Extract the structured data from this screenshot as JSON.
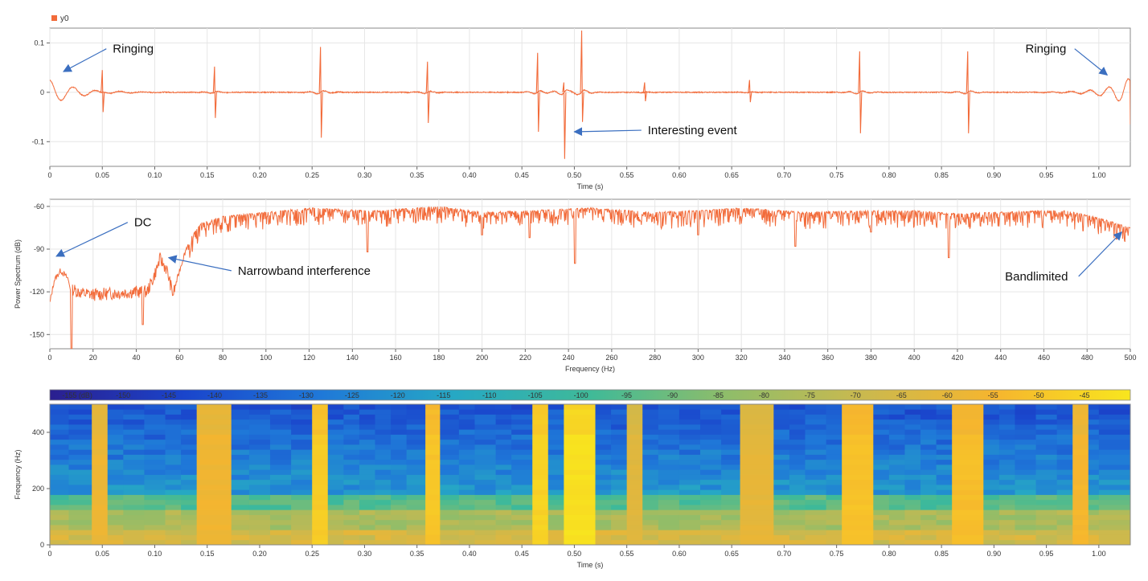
{
  "chart_data": [
    {
      "type": "line",
      "title": "",
      "xlabel": "Time (s)",
      "ylabel": "",
      "xlim": [
        0,
        1.03
      ],
      "ylim": [
        -0.15,
        0.13
      ],
      "grid": true,
      "legend": "top-left",
      "legend_entries": [
        "y0"
      ],
      "x_ticks": [
        0,
        0.05,
        0.1,
        0.15,
        0.2,
        0.25,
        0.3,
        0.35,
        0.4,
        0.45,
        0.5,
        0.55,
        0.6,
        0.65,
        0.7,
        0.75,
        0.8,
        0.85,
        0.9,
        0.95,
        1.0
      ],
      "x_tick_labels": [
        "0",
        "0.05",
        "0.10",
        "0.15",
        "0.20",
        "0.25",
        "0.30",
        "0.35",
        "0.40",
        "0.45",
        "0.50",
        "0.55",
        "0.60",
        "0.65",
        "0.70",
        "0.75",
        "0.80",
        "0.85",
        "0.90",
        "0.95",
        "1.00"
      ],
      "y_ticks": [
        0.1,
        0,
        -0.1
      ],
      "y_tick_labels": [
        "0.1",
        "0",
        "-0.1"
      ],
      "series": [
        {
          "name": "y0",
          "color": "#f26b3a",
          "baseline": 0,
          "ringing_ends": [
            {
              "x": 0.0,
              "amplitude": 0.025
            },
            {
              "x": 1.03,
              "amplitude": 0.03
            }
          ],
          "spikes": [
            {
              "x": 0.05,
              "up": 0.045,
              "down": -0.04
            },
            {
              "x": 0.157,
              "up": 0.052,
              "down": -0.052
            },
            {
              "x": 0.258,
              "up": 0.092,
              "down": -0.092
            },
            {
              "x": 0.36,
              "up": 0.062,
              "down": -0.062
            },
            {
              "x": 0.465,
              "up": 0.08,
              "down": -0.08
            },
            {
              "x": 0.49,
              "up": 0.02,
              "down": -0.135
            },
            {
              "x": 0.507,
              "up": 0.125,
              "down": -0.06
            },
            {
              "x": 0.567,
              "up": 0.02,
              "down": -0.018
            },
            {
              "x": 0.667,
              "up": 0.025,
              "down": -0.02
            },
            {
              "x": 0.772,
              "up": 0.083,
              "down": -0.083
            },
            {
              "x": 0.875,
              "up": 0.083,
              "down": -0.083
            }
          ]
        }
      ],
      "annotations": [
        {
          "text": "Ringing",
          "x": 0.06,
          "y": 0.08,
          "arrow_to": [
            0.013,
            0.042
          ]
        },
        {
          "text": "Interesting event",
          "x": 0.57,
          "y": -0.085,
          "arrow_to": [
            0.5,
            -0.08
          ]
        },
        {
          "text": "Ringing",
          "x": 0.93,
          "y": 0.08,
          "arrow_to": [
            1.008,
            0.035
          ]
        }
      ]
    },
    {
      "type": "line",
      "title": "",
      "xlabel": "Frequency (Hz)",
      "ylabel": "Power Spectrum (dB)",
      "xlim": [
        0,
        500
      ],
      "ylim": [
        -160,
        -55
      ],
      "grid": true,
      "x_ticks": [
        0,
        20,
        40,
        60,
        80,
        100,
        120,
        140,
        160,
        180,
        200,
        220,
        240,
        260,
        280,
        300,
        320,
        340,
        360,
        380,
        400,
        420,
        440,
        460,
        480,
        500
      ],
      "x_tick_labels": [
        "0",
        "20",
        "40",
        "60",
        "80",
        "100",
        "120",
        "140",
        "160",
        "180",
        "200",
        "220",
        "240",
        "260",
        "280",
        "300",
        "320",
        "340",
        "360",
        "380",
        "400",
        "420",
        "440",
        "460",
        "480",
        "500"
      ],
      "y_ticks": [
        -60,
        -90,
        -120,
        -150
      ],
      "y_tick_labels": [
        "-60",
        "-90",
        "-120",
        "-150"
      ],
      "series": [
        {
          "color": "#f26b3a",
          "envelope": [
            [
              0,
              -128
            ],
            [
              2,
              -112
            ],
            [
              5,
              -105
            ],
            [
              8,
              -110
            ],
            [
              10,
              -118
            ],
            [
              15,
              -121
            ],
            [
              20,
              -122
            ],
            [
              30,
              -121
            ],
            [
              40,
              -120
            ],
            [
              45,
              -120
            ],
            [
              48,
              -110
            ],
            [
              51,
              -97
            ],
            [
              54,
              -104
            ],
            [
              57,
              -122
            ],
            [
              60,
              -105
            ],
            [
              63,
              -90
            ],
            [
              66,
              -80
            ],
            [
              70,
              -72
            ],
            [
              80,
              -67
            ],
            [
              100,
              -64
            ],
            [
              120,
              -61
            ],
            [
              150,
              -63
            ],
            [
              180,
              -60
            ],
            [
              200,
              -64
            ],
            [
              220,
              -63
            ],
            [
              250,
              -61
            ],
            [
              280,
              -64
            ],
            [
              300,
              -63
            ],
            [
              320,
              -61
            ],
            [
              350,
              -64
            ],
            [
              380,
              -63
            ],
            [
              400,
              -63
            ],
            [
              420,
              -65
            ],
            [
              440,
              -64
            ],
            [
              460,
              -63
            ],
            [
              470,
              -63
            ],
            [
              480,
              -66
            ],
            [
              490,
              -70
            ],
            [
              500,
              -75
            ]
          ],
          "dips": [
            [
              10,
              -160
            ],
            [
              43,
              -143
            ],
            [
              147,
              -92
            ],
            [
              243,
              -100
            ],
            [
              416,
              -96
            ],
            [
              345,
              -88
            ],
            [
              200,
              -80
            ],
            [
              222,
              -82
            ],
            [
              380,
              -78
            ],
            [
              300,
              -80
            ]
          ]
        }
      ],
      "annotations": [
        {
          "text": "DC",
          "x": 39,
          "y": -74,
          "arrow_to": [
            3,
            -95
          ]
        },
        {
          "text": "Narrowband interference",
          "x": 87,
          "y": -108,
          "arrow_to": [
            55,
            -96
          ]
        },
        {
          "text": "Bandlimited",
          "x": 442,
          "y": -112,
          "arrow_to": [
            496,
            -78
          ]
        }
      ]
    },
    {
      "type": "heatmap",
      "title": "",
      "xlabel": "Time (s)",
      "ylabel": "Frequency (Hz)",
      "xlim": [
        0,
        1.03
      ],
      "ylim": [
        0,
        500
      ],
      "x_ticks": [
        0,
        0.05,
        0.1,
        0.15,
        0.2,
        0.25,
        0.3,
        0.35,
        0.4,
        0.45,
        0.5,
        0.55,
        0.6,
        0.65,
        0.7,
        0.75,
        0.8,
        0.85,
        0.9,
        0.95,
        1.0
      ],
      "x_tick_labels": [
        "0",
        "0.05",
        "0.10",
        "0.15",
        "0.20",
        "0.25",
        "0.30",
        "0.35",
        "0.40",
        "0.45",
        "0.50",
        "0.55",
        "0.60",
        "0.65",
        "0.70",
        "0.75",
        "0.80",
        "0.85",
        "0.90",
        "0.95",
        "1.00"
      ],
      "y_ticks": [
        0,
        200,
        400
      ],
      "y_tick_labels": [
        "0",
        "200",
        "400"
      ],
      "colorbar": {
        "placement": "top",
        "range": [
          -158,
          -40
        ],
        "tick_values": [
          -155,
          -150,
          -145,
          -140,
          -135,
          -130,
          -125,
          -120,
          -115,
          -110,
          -105,
          -100,
          -95,
          -90,
          -85,
          -80,
          -75,
          -70,
          -65,
          -60,
          -55,
          -50,
          -45
        ],
        "tick_labels": [
          "-155 (dB)",
          "-150",
          "-145",
          "-140",
          "-135",
          "-130",
          "-125",
          "-120",
          "-115",
          "-110",
          "-105",
          "-100",
          "-95",
          "-90",
          "-85",
          "-80",
          "-75",
          "-70",
          "-65",
          "-60",
          "-55",
          "-50",
          "-45"
        ],
        "colors": [
          "#2b1f8f",
          "#1a45cc",
          "#1f78d8",
          "#26a8c4",
          "#3fba98",
          "#8ebd6a",
          "#c9b94f",
          "#f6b52e",
          "#f8e61e"
        ]
      },
      "time_edges": [
        0,
        0.018,
        0.04,
        0.055,
        0.07,
        0.09,
        0.11,
        0.125,
        0.14,
        0.173,
        0.19,
        0.21,
        0.23,
        0.25,
        0.265,
        0.28,
        0.295,
        0.31,
        0.325,
        0.34,
        0.358,
        0.372,
        0.39,
        0.405,
        0.425,
        0.44,
        0.46,
        0.475,
        0.49,
        0.52,
        0.535,
        0.55,
        0.565,
        0.58,
        0.6,
        0.62,
        0.64,
        0.658,
        0.69,
        0.705,
        0.72,
        0.74,
        0.755,
        0.785,
        0.8,
        0.815,
        0.83,
        0.845,
        0.86,
        0.89,
        0.905,
        0.92,
        0.94,
        0.96,
        0.975,
        0.99,
        1.0,
        1.03
      ],
      "loud_segments": [
        0.04,
        0.14,
        0.25,
        0.358,
        0.46,
        0.49,
        0.55,
        0.658,
        0.755,
        0.86,
        0.975
      ],
      "loud_levels": [
        -58,
        -57,
        -48,
        -50,
        -46,
        -42,
        -62,
        -60,
        -51,
        -52,
        -55
      ]
    }
  ]
}
